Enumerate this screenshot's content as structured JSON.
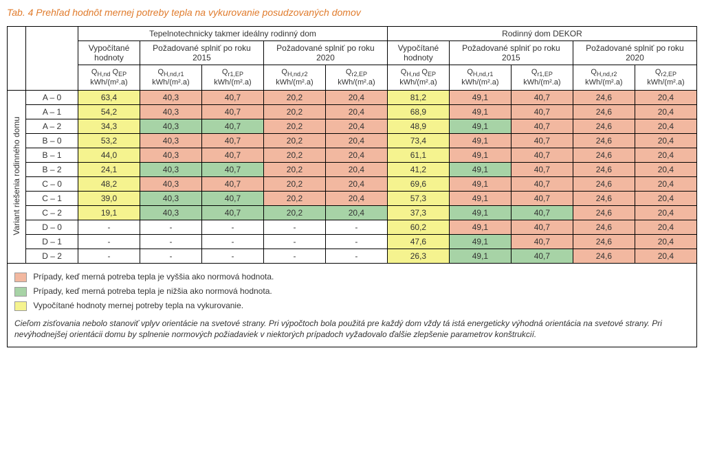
{
  "title": "Tab. 4  Prehľad hodnôt mernej potreby tepla na vykurovanie posudzovaných domov",
  "section_left": "Tepelnotechnicky takmer ideálny rodinný dom",
  "section_right": "Rodinný dom DEKOR",
  "sub1": "Vypočítané hodnoty",
  "sub2": "Požadované splniť po roku 2015",
  "sub3": "Požadované splniť po roku 2020",
  "rot": "Variant riešenia rodinného domu",
  "u_a": "kWh/(m².a)",
  "col_labels": [
    "A – 0",
    "A – 1",
    "A – 2",
    "B – 0",
    "B – 1",
    "B – 2",
    "C – 0",
    "C – 1",
    "C – 2",
    "D – 0",
    "D – 1",
    "D – 2"
  ],
  "rows": [
    {
      "v": [
        "63,4",
        "40,3",
        "40,7",
        "20,2",
        "20,4",
        "81,2",
        "49,1",
        "40,7",
        "24,6",
        "20,4"
      ],
      "c": [
        "yellow",
        "salmon",
        "salmon",
        "salmon",
        "salmon",
        "yellow",
        "salmon",
        "salmon",
        "salmon",
        "salmon"
      ]
    },
    {
      "v": [
        "54,2",
        "40,3",
        "40,7",
        "20,2",
        "20,4",
        "68,9",
        "49,1",
        "40,7",
        "24,6",
        "20,4"
      ],
      "c": [
        "yellow",
        "salmon",
        "salmon",
        "salmon",
        "salmon",
        "yellow",
        "salmon",
        "salmon",
        "salmon",
        "salmon"
      ]
    },
    {
      "v": [
        "34,3",
        "40,3",
        "40,7",
        "20,2",
        "20,4",
        "48,9",
        "49,1",
        "40,7",
        "24,6",
        "20,4"
      ],
      "c": [
        "yellow",
        "green",
        "green",
        "salmon",
        "salmon",
        "yellow",
        "green",
        "salmon",
        "salmon",
        "salmon"
      ]
    },
    {
      "v": [
        "53,2",
        "40,3",
        "40,7",
        "20,2",
        "20,4",
        "73,4",
        "49,1",
        "40,7",
        "24,6",
        "20,4"
      ],
      "c": [
        "yellow",
        "salmon",
        "salmon",
        "salmon",
        "salmon",
        "yellow",
        "salmon",
        "salmon",
        "salmon",
        "salmon"
      ]
    },
    {
      "v": [
        "44,0",
        "40,3",
        "40,7",
        "20,2",
        "20,4",
        "61,1",
        "49,1",
        "40,7",
        "24,6",
        "20,4"
      ],
      "c": [
        "yellow",
        "salmon",
        "salmon",
        "salmon",
        "salmon",
        "yellow",
        "salmon",
        "salmon",
        "salmon",
        "salmon"
      ]
    },
    {
      "v": [
        "24,1",
        "40,3",
        "40,7",
        "20,2",
        "20,4",
        "41,2",
        "49,1",
        "40,7",
        "24,6",
        "20,4"
      ],
      "c": [
        "yellow",
        "green",
        "green",
        "salmon",
        "salmon",
        "yellow",
        "green",
        "salmon",
        "salmon",
        "salmon"
      ]
    },
    {
      "v": [
        "48,2",
        "40,3",
        "40,7",
        "20,2",
        "20,4",
        "69,6",
        "49,1",
        "40,7",
        "24,6",
        "20,4"
      ],
      "c": [
        "yellow",
        "salmon",
        "salmon",
        "salmon",
        "salmon",
        "yellow",
        "salmon",
        "salmon",
        "salmon",
        "salmon"
      ]
    },
    {
      "v": [
        "39,0",
        "40,3",
        "40,7",
        "20,2",
        "20,4",
        "57,3",
        "49,1",
        "40,7",
        "24,6",
        "20,4"
      ],
      "c": [
        "yellow",
        "green",
        "green",
        "salmon",
        "salmon",
        "yellow",
        "salmon",
        "salmon",
        "salmon",
        "salmon"
      ]
    },
    {
      "v": [
        "19,1",
        "40,3",
        "40,7",
        "20,2",
        "20,4",
        "37,3",
        "49,1",
        "40,7",
        "24,6",
        "20,4"
      ],
      "c": [
        "yellow",
        "green",
        "green",
        "green",
        "green",
        "yellow",
        "green",
        "green",
        "salmon",
        "salmon"
      ]
    },
    {
      "v": [
        "-",
        "-",
        "-",
        "-",
        "-",
        "60,2",
        "49,1",
        "40,7",
        "24,6",
        "20,4"
      ],
      "c": [
        "",
        "",
        "",
        "",
        "",
        "yellow",
        "salmon",
        "salmon",
        "salmon",
        "salmon"
      ]
    },
    {
      "v": [
        "-",
        "-",
        "-",
        "-",
        "-",
        "47,6",
        "49,1",
        "40,7",
        "24,6",
        "20,4"
      ],
      "c": [
        "",
        "",
        "",
        "",
        "",
        "yellow",
        "green",
        "salmon",
        "salmon",
        "salmon"
      ]
    },
    {
      "v": [
        "-",
        "-",
        "-",
        "-",
        "-",
        "26,3",
        "49,1",
        "40,7",
        "24,6",
        "20,4"
      ],
      "c": [
        "",
        "",
        "",
        "",
        "",
        "yellow",
        "green",
        "green",
        "salmon",
        "salmon"
      ]
    }
  ],
  "legend1": "Prípady, keď merná potreba tepla je vyššia ako normová hodnota.",
  "legend2": "Prípady, keď merná potreba tepla je nižšia ako normová hodnota.",
  "legend3": "Vypočítané hodnoty mernej potreby tepla na vykurovanie.",
  "note": "Cieľom zisťovania nebolo stanoviť vplyv orientácie na svetové strany. Pri výpočtoch bola použitá pre každý dom vždy tá istá energeticky výhodná orientácia na svetové strany. Pri nevýhodnejšej orientácii domu by splnenie normových požiadaviek v niektorých prípadoch vyžadovalo ďalšie zlepšenie parametrov konštrukcií."
}
